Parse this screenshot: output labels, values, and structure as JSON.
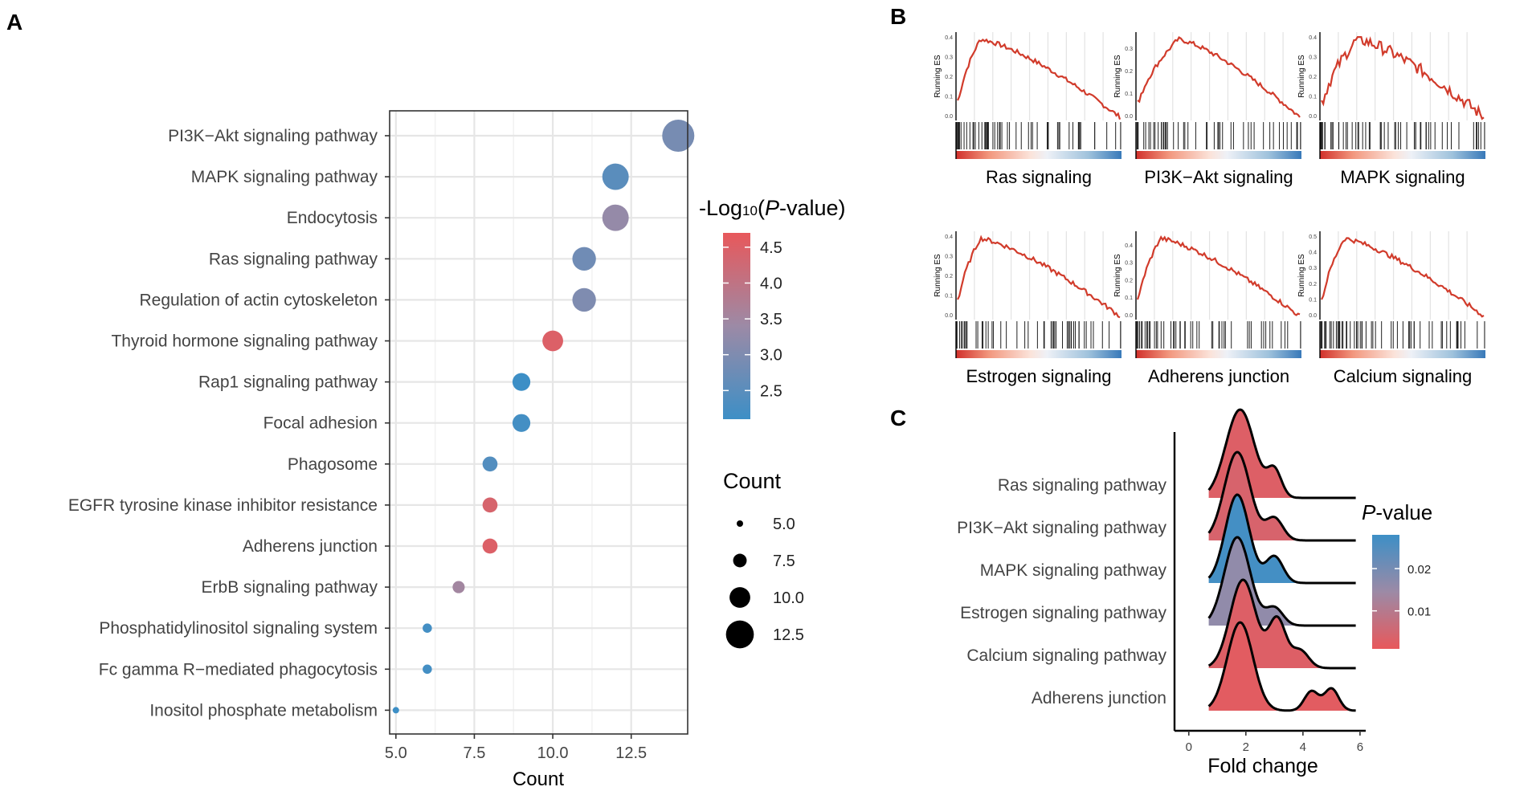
{
  "panels": {
    "a": "A",
    "b": "B",
    "c": "C"
  },
  "chart_data": [
    {
      "type": "scatter",
      "panel": "A",
      "title": "",
      "xlabel": "Count",
      "ylabel": "",
      "xlim": [
        4.8,
        14.3
      ],
      "xticks": [
        5.0,
        7.5,
        10.0,
        12.5
      ],
      "xtick_labels": [
        "5.0",
        "7.5",
        "10.0",
        "12.5"
      ],
      "grid": true,
      "categories": [
        "PI3K−Akt signaling pathway",
        "MAPK signaling pathway",
        "Endocytosis",
        "Ras signaling pathway",
        "Regulation of actin cytoskeleton",
        "Thyroid hormone signaling pathway",
        "Rap1 signaling pathway",
        "Focal adhesion",
        "Phagosome",
        "EGFR tyrosine kinase inhibitor resistance",
        "Adherens junction",
        "ErbB signaling pathway",
        "Phosphatidylinositol signaling system",
        "Fc gamma R−mediated phagocytosis",
        "Inositol phosphate metabolism"
      ],
      "counts": [
        14,
        12,
        12,
        11,
        11,
        10,
        9,
        9,
        8,
        8,
        8,
        7,
        6,
        6,
        5
      ],
      "neg_log10_p": [
        2.9,
        2.5,
        3.3,
        2.8,
        3.0,
        4.5,
        2.1,
        2.2,
        2.4,
        4.4,
        4.5,
        3.5,
        2.2,
        2.2,
        2.1
      ],
      "color_legend": {
        "title_prefix": "-Log",
        "title_sub": "10",
        "title_open": "(",
        "title_p": "P",
        "title_suffix": "-value)",
        "min": 2.1,
        "max": 4.7,
        "ticks": [
          4.5,
          4.0,
          3.5,
          3.0,
          2.5
        ],
        "tick_labels": [
          "4.5",
          "4.0",
          "3.5",
          "3.0",
          "2.5"
        ],
        "low_color": "#3D8FC6",
        "mid_color": "#9C8AA6",
        "high_color": "#E8585B"
      },
      "size_legend": {
        "title": "Count",
        "values": [
          5.0,
          7.5,
          10.0,
          12.5
        ],
        "labels": [
          "5.0",
          "7.5",
          "10.0",
          "12.5"
        ]
      }
    },
    {
      "type": "line",
      "panel": "B",
      "ylabel": "Running ES",
      "plots": [
        {
          "name": "Ras signaling",
          "ymax": 0.4,
          "yticks": [
            "0.0",
            "0.1",
            "0.2",
            "0.3",
            "0.4"
          ],
          "profile": "early"
        },
        {
          "name": "PI3K−Akt signaling",
          "ymax": 0.35,
          "yticks": [
            "0.0",
            "0.1",
            "0.2",
            "0.3"
          ],
          "profile": "broad"
        },
        {
          "name": "MAPK signaling",
          "ymax": 0.4,
          "yticks": [
            "0.0",
            "0.1",
            "0.2",
            "0.3",
            "0.4"
          ],
          "profile": "jagged"
        },
        {
          "name": "Estrogen signaling",
          "ymax": 0.4,
          "yticks": [
            "0.0",
            "0.1",
            "0.2",
            "0.3",
            "0.4"
          ],
          "profile": "early"
        },
        {
          "name": "Adherens junction",
          "ymax": 0.45,
          "yticks": [
            "0.0",
            "0.1",
            "0.2",
            "0.3",
            "0.4"
          ],
          "profile": "early"
        },
        {
          "name": "Calcium signaling",
          "ymax": 0.5,
          "yticks": [
            "0.0",
            "0.1",
            "0.2",
            "0.3",
            "0.4",
            "0.5"
          ],
          "profile": "early"
        }
      ]
    },
    {
      "type": "area",
      "panel": "C",
      "xlabel": "Fold change",
      "xlim": [
        -0.5,
        6.2
      ],
      "xticks": [
        0,
        2,
        4,
        6
      ],
      "xtick_labels": [
        "0",
        "2",
        "4",
        "6"
      ],
      "series": [
        {
          "name": "Ras signaling pathway",
          "p": 0.003,
          "peaks": [
            [
              1.8,
              1.0,
              0.5
            ],
            [
              3.0,
              0.3,
              0.25
            ]
          ]
        },
        {
          "name": "PI3K−Akt signaling pathway",
          "p": 0.004,
          "peaks": [
            [
              1.7,
              1.0,
              0.45
            ],
            [
              3.0,
              0.25,
              0.3
            ]
          ]
        },
        {
          "name": "MAPK signaling pathway",
          "p": 0.027,
          "peaks": [
            [
              1.7,
              1.0,
              0.42
            ],
            [
              3.0,
              0.3,
              0.3
            ]
          ]
        },
        {
          "name": "Estrogen signaling pathway",
          "p": 0.016,
          "peaks": [
            [
              1.7,
              1.0,
              0.45
            ],
            [
              3.0,
              0.2,
              0.3
            ]
          ]
        },
        {
          "name": "Calcium signaling pathway",
          "p": 0.003,
          "peaks": [
            [
              1.9,
              1.0,
              0.45
            ],
            [
              3.1,
              0.55,
              0.3
            ],
            [
              3.9,
              0.2,
              0.3
            ]
          ]
        },
        {
          "name": "Adherens junction",
          "p": 0.002,
          "peaks": [
            [
              1.8,
              1.0,
              0.45
            ],
            [
              4.3,
              0.22,
              0.25
            ],
            [
              5.0,
              0.25,
              0.25
            ]
          ]
        }
      ],
      "color_legend": {
        "title_p": "P",
        "title_suffix": "-value",
        "min": 0.001,
        "max": 0.028,
        "ticks": [
          0.02,
          0.01
        ],
        "tick_labels": [
          "0.02",
          "0.01"
        ],
        "low_color": "#E8585B",
        "mid_color": "#9C8AA6",
        "high_color": "#3D8FC6"
      }
    }
  ]
}
